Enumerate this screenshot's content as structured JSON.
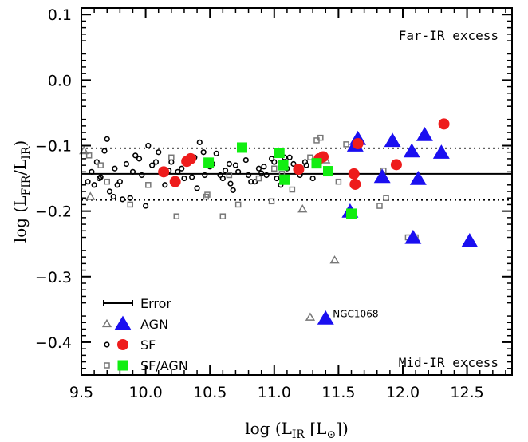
{
  "chart_data": {
    "type": "scatter",
    "xlabel": {
      "main": "log (L",
      "sub": "IR",
      "after": " [L",
      "sym": "⊙",
      "end": "])"
    },
    "ylabel": {
      "main": "log (L",
      "sub1": "FIR",
      "mid": "/L",
      "sub2": "IR",
      "end": ")"
    },
    "xlim": [
      9.5,
      12.85
    ],
    "ylim": [
      -0.45,
      0.11
    ],
    "xticks": [
      "9.5",
      "10.0",
      "10.5",
      "11.0",
      "11.5",
      "12.0",
      "12.5"
    ],
    "yticks": [
      "0.1",
      "0.0",
      "-0.1",
      "-0.2",
      "-0.3",
      "-0.4"
    ],
    "reference_lines": [
      {
        "y": -0.143,
        "style": "solid"
      },
      {
        "y": -0.104,
        "style": "dotted"
      },
      {
        "y": -0.183,
        "style": "dotted"
      }
    ],
    "annotations": {
      "top_right": "Far-IR excess",
      "bottom_right": "Mid-IR excess"
    },
    "point_labels": [
      {
        "text": "NGC1068",
        "x": 11.4,
        "y": -0.364
      }
    ],
    "legend": [
      {
        "label": "Error",
        "marker": "errorbar"
      },
      {
        "label": "AGN",
        "marker": "triangle"
      },
      {
        "label": "SF",
        "marker": "circle"
      },
      {
        "label": "SF/AGN",
        "marker": "square"
      }
    ],
    "colors": {
      "agn": "#1a0ff0",
      "sf": "#ee1c1c",
      "sfagn": "#11ee11",
      "gray": "#777777",
      "black": "#000000"
    },
    "series": [
      {
        "name": "AGN",
        "marker": "triangle",
        "filled": true,
        "x": [
          11.65,
          11.63,
          11.84,
          11.92,
          12.07,
          12.17,
          12.3,
          12.12,
          12.08,
          12.52,
          11.4,
          11.59
        ],
        "y": [
          -0.09,
          -0.1,
          -0.148,
          -0.093,
          -0.109,
          -0.084,
          -0.111,
          -0.151,
          -0.241,
          -0.246,
          -0.364,
          -0.201
        ]
      },
      {
        "name": "SF",
        "marker": "circle",
        "filled": true,
        "x": [
          10.14,
          10.23,
          10.32,
          10.35,
          11.19,
          11.35,
          11.38,
          11.62,
          11.63,
          11.65,
          11.95,
          12.32
        ],
        "y": [
          -0.14,
          -0.155,
          -0.124,
          -0.12,
          -0.136,
          -0.12,
          -0.117,
          -0.143,
          -0.159,
          -0.097,
          -0.129,
          -0.067
        ]
      },
      {
        "name": "SF/AGN",
        "marker": "square",
        "filled": true,
        "x": [
          10.49,
          10.75,
          11.04,
          11.07,
          11.08,
          11.33,
          11.42,
          11.6
        ],
        "y": [
          -0.126,
          -0.103,
          -0.111,
          -0.13,
          -0.152,
          -0.127,
          -0.139,
          -0.204
        ]
      },
      {
        "name": "AGN (small)",
        "marker": "triangle",
        "filled": false,
        "x": [
          9.52,
          9.57,
          11.22,
          11.47,
          11.28,
          11.4
        ],
        "y": [
          -0.108,
          -0.178,
          -0.197,
          -0.275,
          -0.362,
          -0.122
        ]
      },
      {
        "name": "SF (small)",
        "marker": "circle",
        "filled": false,
        "x": [
          9.58,
          9.62,
          9.65,
          9.7,
          9.72,
          9.76,
          9.8,
          9.85,
          9.88,
          9.92,
          9.97,
          10.0,
          10.05,
          10.1,
          10.15,
          10.2,
          10.25,
          10.3,
          10.38,
          10.42,
          10.46,
          10.5,
          10.55,
          10.6,
          10.65,
          10.68,
          10.72,
          10.78,
          10.82,
          10.88,
          10.94,
          11.0,
          11.05,
          11.12,
          11.18,
          11.25,
          11.3,
          9.6,
          9.68,
          9.75,
          9.9,
          10.08,
          10.28,
          10.45,
          10.58,
          10.7,
          10.85,
          10.98,
          11.1,
          11.2,
          9.64,
          9.78,
          9.95,
          10.18,
          10.36,
          10.52,
          10.66,
          10.8,
          10.92,
          11.08,
          11.24,
          9.55,
          9.82,
          10.02,
          10.4,
          10.62,
          10.76,
          10.9,
          11.02,
          11.15
        ],
        "y": [
          -0.14,
          -0.125,
          -0.148,
          -0.09,
          -0.17,
          -0.135,
          -0.155,
          -0.128,
          -0.18,
          -0.115,
          -0.145,
          -0.192,
          -0.13,
          -0.11,
          -0.16,
          -0.125,
          -0.14,
          -0.15,
          -0.118,
          -0.095,
          -0.145,
          -0.132,
          -0.112,
          -0.15,
          -0.128,
          -0.168,
          -0.14,
          -0.122,
          -0.155,
          -0.135,
          -0.145,
          -0.125,
          -0.16,
          -0.118,
          -0.14,
          -0.13,
          -0.15,
          -0.16,
          -0.108,
          -0.178,
          -0.14,
          -0.125,
          -0.135,
          -0.11,
          -0.145,
          -0.13,
          -0.155,
          -0.12,
          -0.135,
          -0.145,
          -0.15,
          -0.16,
          -0.12,
          -0.138,
          -0.148,
          -0.128,
          -0.158,
          -0.145,
          -0.132,
          -0.118,
          -0.125,
          -0.155,
          -0.182,
          -0.1,
          -0.165,
          -0.138,
          -0.105,
          -0.142,
          -0.15,
          -0.128
        ]
      },
      {
        "name": "SF/AGN (small)",
        "marker": "square",
        "filled": false,
        "x": [
          9.56,
          9.65,
          9.7,
          9.88,
          10.02,
          10.24,
          10.48,
          10.6,
          10.72,
          10.88,
          10.98,
          11.06,
          11.14,
          11.28,
          11.33,
          11.36,
          11.5,
          11.56,
          11.82,
          11.85,
          11.87,
          12.04,
          12.1,
          10.2,
          10.47,
          10.65,
          11.0
        ],
        "y": [
          -0.115,
          -0.13,
          -0.155,
          -0.19,
          -0.16,
          -0.208,
          -0.175,
          -0.208,
          -0.19,
          -0.15,
          -0.185,
          -0.143,
          -0.167,
          -0.118,
          -0.092,
          -0.088,
          -0.155,
          -0.098,
          -0.192,
          -0.138,
          -0.18,
          -0.24,
          -0.24,
          -0.118,
          -0.178,
          -0.145,
          -0.135
        ]
      }
    ]
  }
}
